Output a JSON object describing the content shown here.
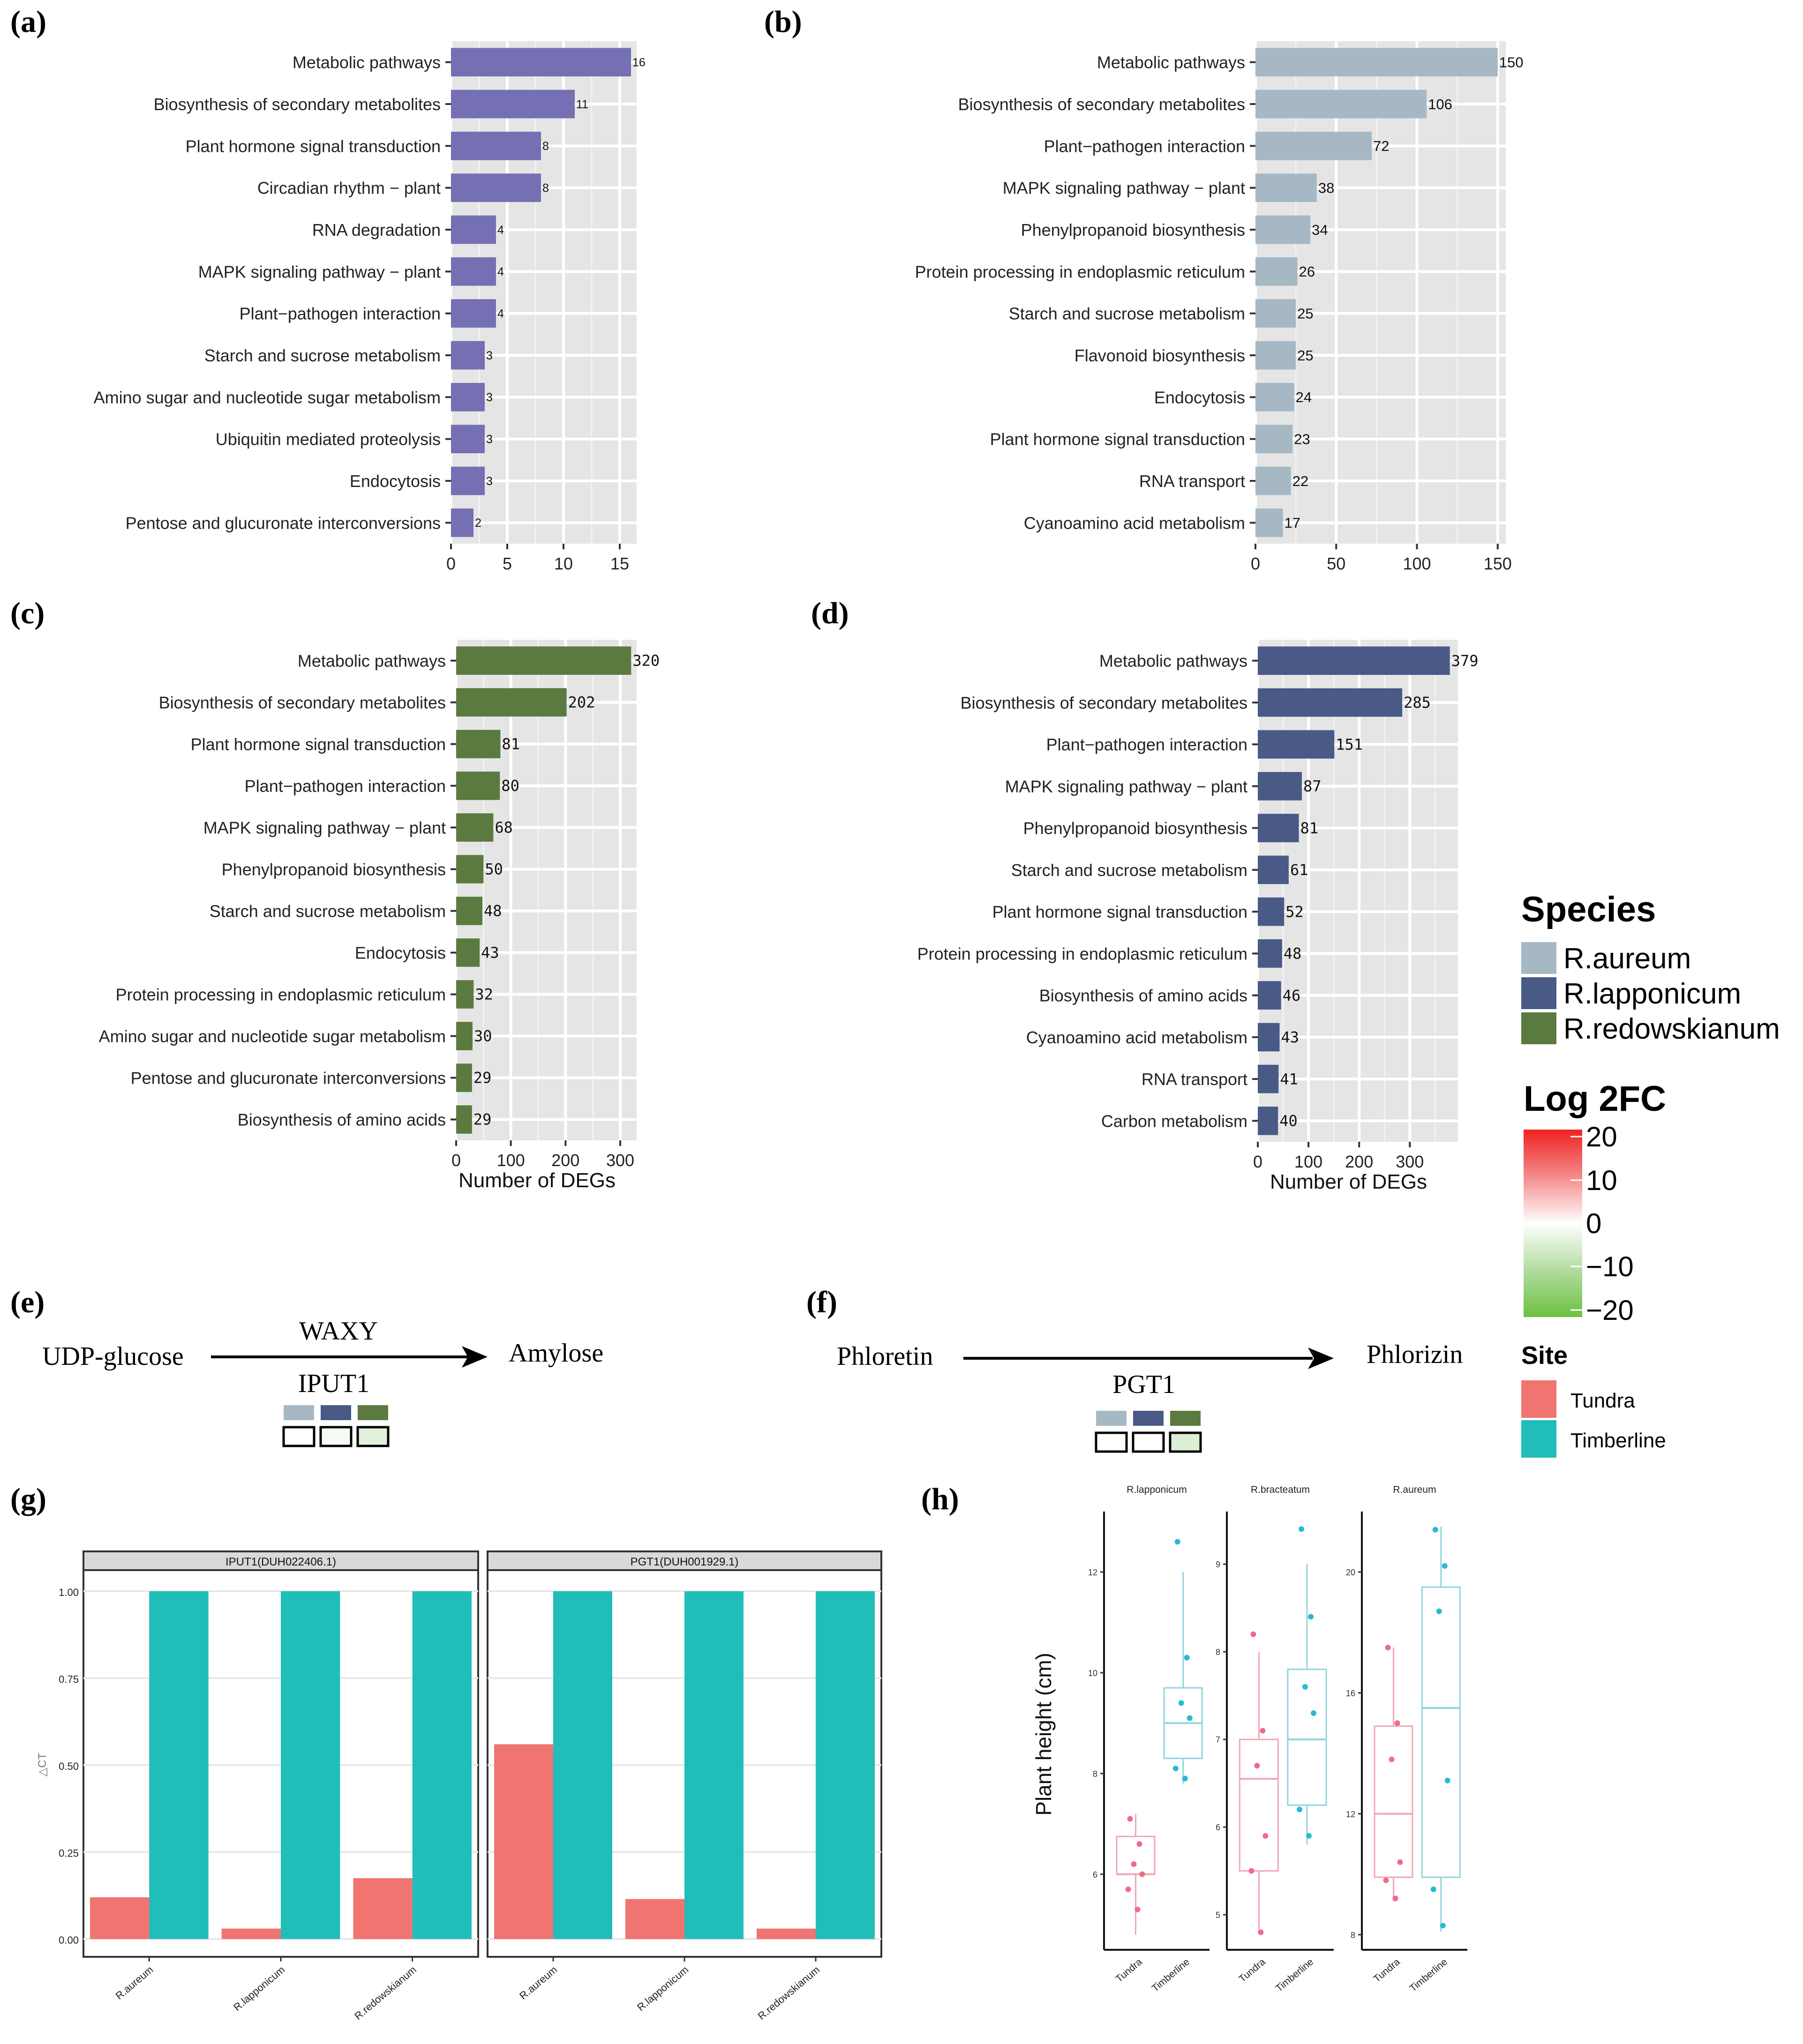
{
  "panel_labels": {
    "a": "(a)",
    "b": "(b)",
    "c": "(c)",
    "d": "(d)",
    "e": "(e)",
    "f": "(f)",
    "g": "(g)",
    "h": "(h)"
  },
  "colors": {
    "R_aureum": "#a7b8c5",
    "R_lapponicum": "#4a5a86",
    "R_redowskianum": "#5b7a40",
    "panel_a": "#7570b3",
    "tundra": "#f07470",
    "timberline": "#20bdb9",
    "panel_bg": "#e5e5e5",
    "grid": "#ffffff"
  },
  "legend": {
    "species_title": "Species",
    "species": [
      {
        "name": "R.aureum",
        "color": "#a7b8c5"
      },
      {
        "name": "R.lapponicum",
        "color": "#4a5a86"
      },
      {
        "name": "R.redowskianum",
        "color": "#5b7a40"
      }
    ],
    "log2fc_title": "Log 2FC",
    "log2fc_ticks": [
      "20",
      "10",
      "0",
      "−10",
      "−20"
    ],
    "site_title": "Site",
    "sites": [
      {
        "name": "Tundra",
        "color": "#f07470"
      },
      {
        "name": "Timberline",
        "color": "#20bdb9"
      }
    ]
  },
  "pathway_e": {
    "substrate": "UDP-glucose",
    "product": "Amylose",
    "enzyme_top": "WAXY",
    "enzyme_bottom": "IPUT1"
  },
  "pathway_f": {
    "substrate": "Phloretin",
    "product": "Phlorizin",
    "enzyme_bottom": "PGT1"
  },
  "chart_data": [
    {
      "id": "a",
      "type": "bar",
      "orientation": "horizontal",
      "xlabel": "",
      "xlim": [
        0,
        16.5
      ],
      "xticks": [
        0,
        5,
        10,
        15
      ],
      "categories": [
        "Metabolic pathways",
        "Biosynthesis of secondary metabolites",
        "Plant hormone signal transduction",
        "Circadian rhythm − plant",
        "RNA degradation",
        "MAPK signaling pathway − plant",
        "Plant−pathogen interaction",
        "Starch and sucrose metabolism",
        "Amino sugar and nucleotide sugar metabolism",
        "Ubiquitin mediated proteolysis",
        "Endocytosis",
        "Pentose and glucuronate interconversions"
      ],
      "values": [
        16,
        11,
        8,
        8,
        4,
        4,
        4,
        3,
        3,
        3,
        3,
        2
      ],
      "labels": [
        "16",
        "11",
        "8",
        "8",
        "4",
        "4",
        "4",
        "3",
        "3",
        "3",
        "3",
        "2"
      ]
    },
    {
      "id": "b",
      "type": "bar",
      "orientation": "horizontal",
      "xlabel": "",
      "xlim": [
        0,
        155
      ],
      "xticks": [
        0,
        50,
        100,
        150
      ],
      "categories": [
        "Metabolic pathways",
        "Biosynthesis of secondary metabolites",
        "Plant−pathogen interaction",
        "MAPK signaling pathway − plant",
        "Phenylpropanoid biosynthesis",
        "Protein processing in endoplasmic reticulum",
        "Starch and sucrose metabolism",
        "Flavonoid biosynthesis",
        "Endocytosis",
        "Plant hormone signal transduction",
        "RNA transport",
        "Cyanoamino acid metabolism"
      ],
      "values": [
        150,
        106,
        72,
        38,
        34,
        26,
        25,
        25,
        24,
        23,
        22,
        17
      ],
      "labels": [
        "150",
        "106",
        "72",
        "38",
        "34",
        "26",
        "25",
        "25",
        "24",
        "23",
        "22",
        "17"
      ]
    },
    {
      "id": "c",
      "type": "bar",
      "orientation": "horizontal",
      "xlabel": "Number of DEGs",
      "xlim": [
        0,
        330
      ],
      "xticks": [
        0,
        100,
        200,
        300
      ],
      "categories": [
        "Metabolic pathways",
        "Biosynthesis of secondary metabolites",
        "Plant hormone signal transduction",
        "Plant−pathogen interaction",
        "MAPK signaling pathway − plant",
        "Phenylpropanoid biosynthesis",
        "Starch and sucrose metabolism",
        "Endocytosis",
        "Protein processing in endoplasmic reticulum",
        "Amino sugar and nucleotide sugar metabolism",
        "Pentose and glucuronate interconversions",
        "Biosynthesis of amino acids"
      ],
      "values": [
        320,
        202,
        81,
        80,
        68,
        50,
        48,
        43,
        32,
        30,
        29,
        29
      ],
      "labels": [
        "320",
        "202",
        "81",
        "80",
        "68",
        "50",
        "48",
        "43",
        "32",
        "30",
        "29",
        "29"
      ]
    },
    {
      "id": "d",
      "type": "bar",
      "orientation": "horizontal",
      "xlabel": "Number of DEGs",
      "xlim": [
        0,
        395
      ],
      "xticks": [
        0,
        100,
        200,
        300
      ],
      "categories": [
        "Metabolic pathways",
        "Biosynthesis of secondary metabolites",
        "Plant−pathogen interaction",
        "MAPK signaling pathway − plant",
        "Phenylpropanoid biosynthesis",
        "Starch and sucrose metabolism",
        "Plant hormone signal transduction",
        "Protein processing in endoplasmic reticulum",
        "Biosynthesis of amino acids",
        "Cyanoamino acid metabolism",
        "RNA transport",
        "Carbon metabolism"
      ],
      "values": [
        379,
        285,
        151,
        87,
        81,
        61,
        52,
        48,
        46,
        43,
        41,
        40
      ],
      "labels": [
        "379",
        "285",
        "151",
        "87",
        "81",
        "61",
        "52",
        "48",
        "46",
        "43",
        "41",
        "40"
      ]
    },
    {
      "id": "g",
      "type": "bar",
      "ylabel": "△CT",
      "ylim": [
        0,
        1
      ],
      "yticks": [
        "0.00",
        "0.25",
        "0.50",
        "0.75",
        "1.00"
      ],
      "facets": [
        {
          "title": "IPUT1(DUH022406.1)",
          "categories": [
            "R.aureum",
            "R.lapponicum",
            "R.redowskianum"
          ],
          "series": [
            {
              "name": "Tundra",
              "values": [
                0.12,
                0.03,
                0.175
              ]
            },
            {
              "name": "Timberline",
              "values": [
                1.0,
                1.0,
                1.0
              ]
            }
          ]
        },
        {
          "title": "PGT1(DUH001929.1)",
          "categories": [
            "R.aureum",
            "R.lapponicum",
            "R.redowskianum"
          ],
          "series": [
            {
              "name": "Tundra",
              "values": [
                0.56,
                0.115,
                0.03
              ]
            },
            {
              "name": "Timberline",
              "values": [
                1.0,
                1.0,
                1.0
              ]
            }
          ]
        }
      ]
    },
    {
      "id": "h",
      "type": "box",
      "ylabel": "Plant height (cm)",
      "facets": [
        {
          "title": "R.lapponicum",
          "ylim": [
            4.5,
            13.2
          ],
          "yticks": [
            6,
            8,
            10,
            12
          ],
          "groups": [
            {
              "name": "Tundra",
              "q1": 6,
              "median": 6,
              "q3": 6.75,
              "wlo": 4.8,
              "whi": 7.2,
              "points": [
                7.1,
                6.6,
                6.2,
                6.0,
                5.7,
                5.3
              ]
            },
            {
              "name": "Timberline",
              "q1": 8.3,
              "median": 9,
              "q3": 9.7,
              "wlo": 7.8,
              "whi": 12,
              "points": [
                12.6,
                10.3,
                9.4,
                9.1,
                8.1,
                7.9
              ]
            }
          ]
        },
        {
          "title": "R.bracteatum",
          "ylim": [
            4.6,
            9.6
          ],
          "yticks": [
            5,
            6,
            7,
            8,
            9
          ],
          "groups": [
            {
              "name": "Tundra",
              "q1": 5.5,
              "median": 6.55,
              "q3": 7.0,
              "wlo": 4.8,
              "whi": 8.0,
              "points": [
                8.2,
                7.1,
                6.7,
                5.9,
                5.5,
                4.8
              ]
            },
            {
              "name": "Timberline",
              "q1": 6.25,
              "median": 7.0,
              "q3": 7.8,
              "wlo": 5.8,
              "whi": 9.0,
              "points": [
                9.4,
                8.4,
                7.6,
                7.3,
                6.2,
                5.9
              ]
            }
          ]
        },
        {
          "title": "R.aureum",
          "ylim": [
            7.5,
            22
          ],
          "yticks": [
            8,
            12,
            16,
            20
          ],
          "groups": [
            {
              "name": "Tundra",
              "q1": 9.9,
              "median": 12,
              "q3": 14.9,
              "wlo": 9.1,
              "whi": 17.5,
              "points": [
                17.5,
                15,
                13.8,
                10.4,
                9.8,
                9.2
              ]
            },
            {
              "name": "Timberline",
              "q1": 9.9,
              "median": 15.5,
              "q3": 19.5,
              "wlo": 8.1,
              "whi": 21.5,
              "points": [
                21.4,
                20.2,
                18.7,
                13.1,
                9.5,
                8.3
              ]
            }
          ]
        }
      ]
    }
  ]
}
